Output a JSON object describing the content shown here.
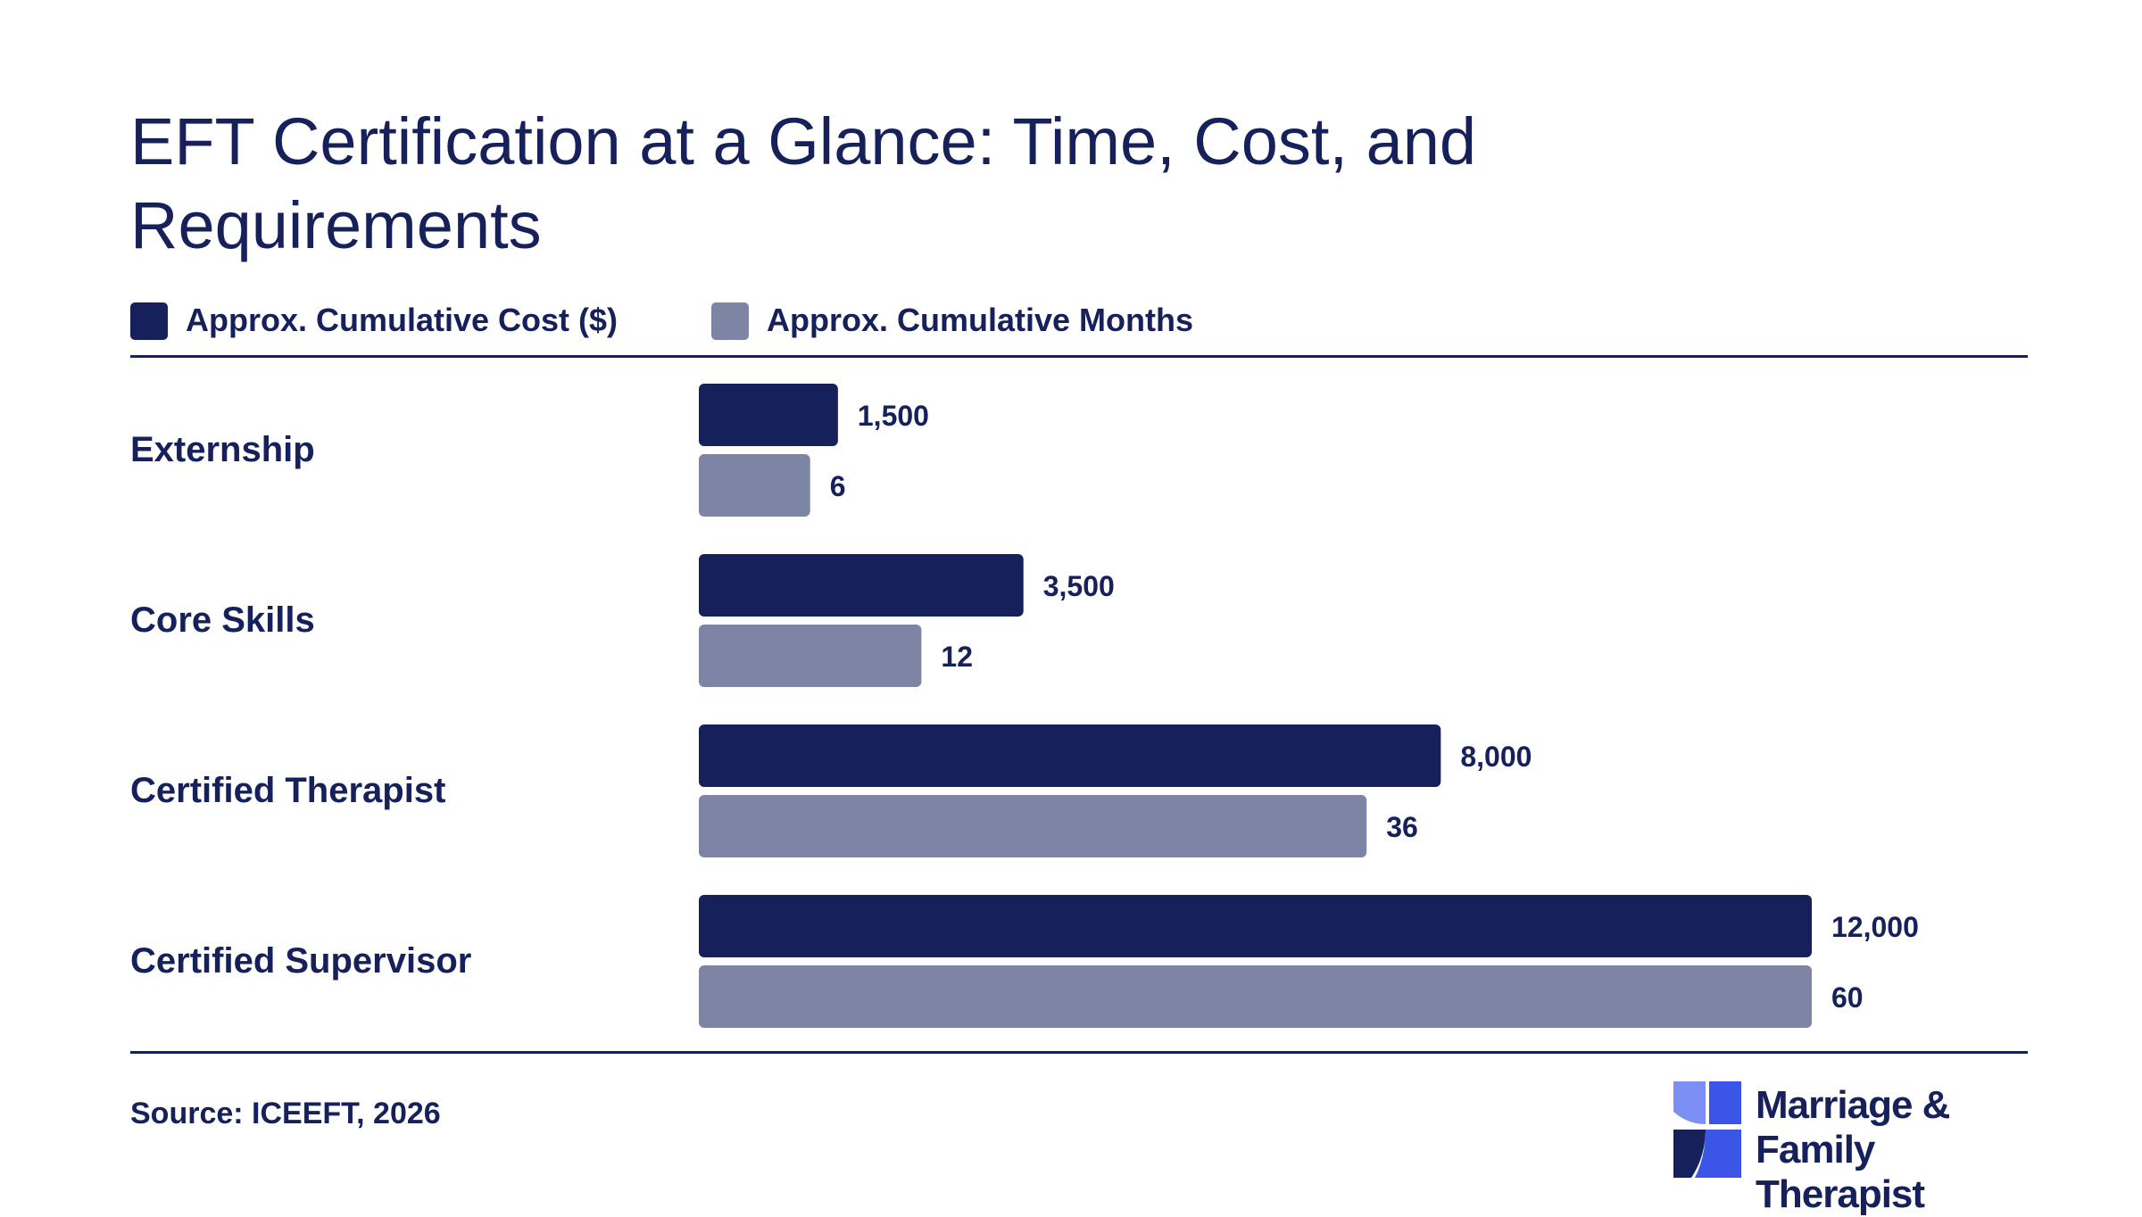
{
  "title": "EFT Certification at a Glance: Time, Cost, and Requirements",
  "legend": [
    {
      "label": "Approx. Cumulative Cost ($)",
      "color": "#16205a"
    },
    {
      "label": "Approx. Cumulative Months",
      "color": "#7e84a3"
    }
  ],
  "chart_data": {
    "type": "bar",
    "orientation": "horizontal",
    "categories": [
      "Externship",
      "Core Skills",
      "Certified Therapist",
      "Certified Supervisor"
    ],
    "series": [
      {
        "name": "Approx. Cumulative Cost ($)",
        "values": [
          1500,
          3500,
          8000,
          12000
        ],
        "labels": [
          "1,500",
          "3,500",
          "8,000",
          "12,000"
        ],
        "color": "#16205a"
      },
      {
        "name": "Approx. Cumulative Months",
        "values": [
          6,
          12,
          36,
          60
        ],
        "labels": [
          "6",
          "12",
          "36",
          "60"
        ],
        "color": "#7e84a3"
      }
    ],
    "grid": false,
    "legend_position": "top-left"
  },
  "source": "Source: ICEEFT, 2026",
  "brand": {
    "name": "Marriage & Family\nTherapist",
    "mark_colors": [
      "#7b8ff5",
      "#3b55e6",
      "#16205a"
    ]
  }
}
